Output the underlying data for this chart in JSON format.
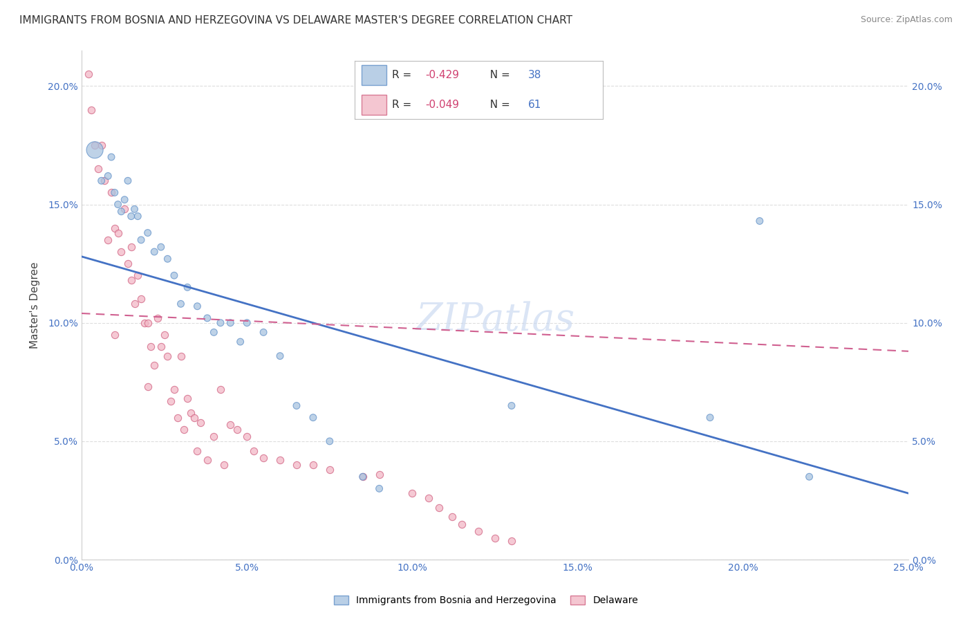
{
  "title": "IMMIGRANTS FROM BOSNIA AND HERZEGOVINA VS DELAWARE MASTER'S DEGREE CORRELATION CHART",
  "source": "Source: ZipAtlas.com",
  "ylabel": "Master's Degree",
  "xlim": [
    0.0,
    0.25
  ],
  "ylim": [
    0.0,
    0.215
  ],
  "xtick_vals": [
    0.0,
    0.05,
    0.1,
    0.15,
    0.2,
    0.25
  ],
  "xtick_labels": [
    "0.0%",
    "5.0%",
    "10.0%",
    "15.0%",
    "20.0%",
    "25.0%"
  ],
  "ytick_vals": [
    0.0,
    0.05,
    0.1,
    0.15,
    0.2
  ],
  "ytick_labels": [
    "0.0%",
    "5.0%",
    "10.0%",
    "15.0%",
    "20.0%"
  ],
  "blue_scatter_x": [
    0.004,
    0.006,
    0.008,
    0.009,
    0.01,
    0.011,
    0.012,
    0.013,
    0.014,
    0.015,
    0.016,
    0.017,
    0.018,
    0.02,
    0.022,
    0.024,
    0.026,
    0.028,
    0.03,
    0.032,
    0.035,
    0.038,
    0.04,
    0.042,
    0.045,
    0.048,
    0.05,
    0.055,
    0.06,
    0.065,
    0.07,
    0.075,
    0.085,
    0.09,
    0.13,
    0.19,
    0.205,
    0.22
  ],
  "blue_scatter_y": [
    0.173,
    0.16,
    0.162,
    0.17,
    0.155,
    0.15,
    0.147,
    0.152,
    0.16,
    0.145,
    0.148,
    0.145,
    0.135,
    0.138,
    0.13,
    0.132,
    0.127,
    0.12,
    0.108,
    0.115,
    0.107,
    0.102,
    0.096,
    0.1,
    0.1,
    0.092,
    0.1,
    0.096,
    0.086,
    0.065,
    0.06,
    0.05,
    0.035,
    0.03,
    0.065,
    0.06,
    0.143,
    0.035
  ],
  "blue_scatter_sizes": [
    300,
    50,
    50,
    50,
    50,
    50,
    50,
    50,
    50,
    50,
    50,
    50,
    50,
    50,
    50,
    50,
    50,
    50,
    50,
    50,
    50,
    50,
    50,
    50,
    50,
    50,
    50,
    50,
    50,
    50,
    50,
    50,
    50,
    50,
    50,
    50,
    50,
    50
  ],
  "pink_scatter_x": [
    0.002,
    0.003,
    0.004,
    0.005,
    0.006,
    0.007,
    0.008,
    0.009,
    0.01,
    0.01,
    0.011,
    0.012,
    0.013,
    0.014,
    0.015,
    0.015,
    0.016,
    0.017,
    0.018,
    0.019,
    0.02,
    0.02,
    0.021,
    0.022,
    0.023,
    0.024,
    0.025,
    0.026,
    0.027,
    0.028,
    0.029,
    0.03,
    0.031,
    0.032,
    0.033,
    0.034,
    0.035,
    0.036,
    0.038,
    0.04,
    0.042,
    0.043,
    0.045,
    0.047,
    0.05,
    0.052,
    0.055,
    0.06,
    0.065,
    0.07,
    0.075,
    0.085,
    0.09,
    0.1,
    0.105,
    0.108,
    0.112,
    0.115,
    0.12,
    0.125,
    0.13
  ],
  "pink_scatter_y": [
    0.205,
    0.19,
    0.175,
    0.165,
    0.175,
    0.16,
    0.135,
    0.155,
    0.14,
    0.095,
    0.138,
    0.13,
    0.148,
    0.125,
    0.132,
    0.118,
    0.108,
    0.12,
    0.11,
    0.1,
    0.1,
    0.073,
    0.09,
    0.082,
    0.102,
    0.09,
    0.095,
    0.086,
    0.067,
    0.072,
    0.06,
    0.086,
    0.055,
    0.068,
    0.062,
    0.06,
    0.046,
    0.058,
    0.042,
    0.052,
    0.072,
    0.04,
    0.057,
    0.055,
    0.052,
    0.046,
    0.043,
    0.042,
    0.04,
    0.04,
    0.038,
    0.035,
    0.036,
    0.028,
    0.026,
    0.022,
    0.018,
    0.015,
    0.012,
    0.009,
    0.008
  ],
  "blue_line_x": [
    0.0,
    0.25
  ],
  "blue_line_y": [
    0.128,
    0.028
  ],
  "pink_line_x": [
    0.0,
    0.25
  ],
  "pink_line_y": [
    0.104,
    0.088
  ],
  "blue_color": "#A8C4E0",
  "pink_color": "#F2B8C6",
  "blue_edge_color": "#6090C8",
  "pink_edge_color": "#D06080",
  "blue_line_color": "#4472C4",
  "pink_line_color": "#D06090",
  "grid_color": "#DDDDDD",
  "background_color": "#FFFFFF",
  "title_fontsize": 11,
  "source_fontsize": 9,
  "watermark_fontsize": 40,
  "watermark": "ZIPatlas",
  "legend_r1": "-0.429",
  "legend_n1": "38",
  "legend_r2": "-0.049",
  "legend_n2": "61"
}
